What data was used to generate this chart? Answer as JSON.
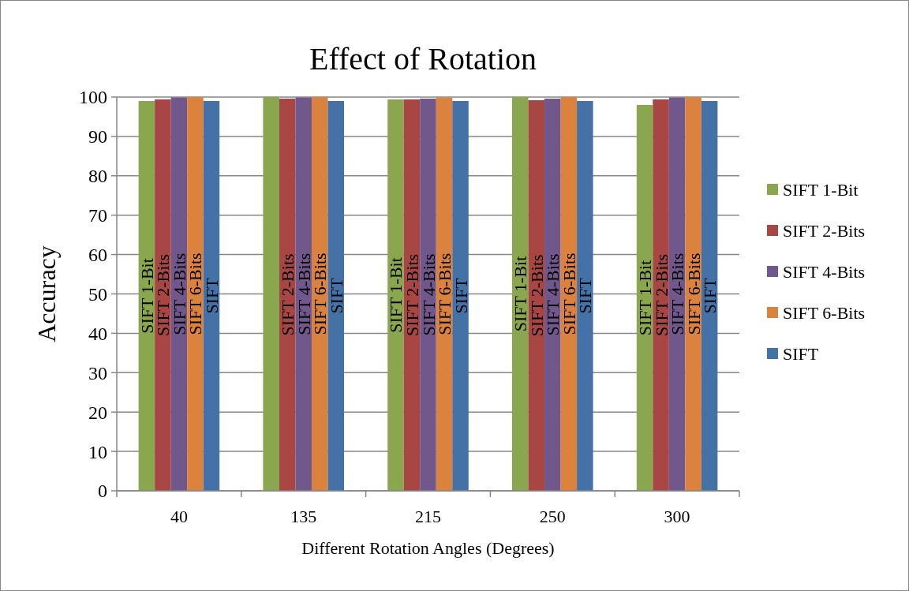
{
  "chart_data": {
    "type": "bar",
    "title": "Effect of Rotation",
    "xlabel": "Different Rotation Angles (Degrees)",
    "ylabel": "Accuracy",
    "categories": [
      "40",
      "135",
      "215",
      "250",
      "300"
    ],
    "series": [
      {
        "name": "SIFT 1-Bit",
        "color": "#8aa64e",
        "values": [
          99,
          100,
          99.4,
          100,
          98
        ],
        "value_labels": [
          "SIFT 1-Bit",
          null,
          "SIFT 1-Bit",
          "SIFT 1-Bit",
          "SIFT 1-Bit"
        ]
      },
      {
        "name": "SIFT 2-Bits",
        "color": "#a84644",
        "values": [
          99.4,
          99.6,
          99.4,
          99.2,
          99.4
        ],
        "value_labels": [
          "SIFT 2-Bits",
          "SIFT 2-Bits",
          "SIFT 2-Bits",
          "SIFT 2-Bits",
          "SIFT 2-Bits"
        ]
      },
      {
        "name": "SIFT 4-Bits",
        "color": "#71588c",
        "values": [
          99.9,
          99.9,
          99.6,
          99.6,
          99.9
        ],
        "value_labels": [
          "SIFT 4-Bits",
          "SIFT 4-Bits",
          "SIFT 4-Bits",
          "SIFT 4-Bits",
          "SIFT 4-Bits"
        ]
      },
      {
        "name": "SIFT 6-Bits",
        "color": "#db823e",
        "values": [
          100,
          100,
          99.9,
          100,
          100
        ],
        "value_labels": [
          "SIFT 6-Bits",
          "SIFT 6-Bits",
          "SIFT 6-Bits",
          "SIFT 6-Bits",
          "SIFT 6-Bits"
        ]
      },
      {
        "name": "SIFT",
        "color": "#4472a6",
        "values": [
          99,
          99,
          99,
          99,
          99
        ],
        "value_labels": [
          "SIFT",
          "SIFT",
          "SIFT",
          "SIFT",
          "SIFT"
        ]
      }
    ],
    "ylim": [
      0,
      100
    ],
    "yticks": [
      0,
      10,
      20,
      30,
      40,
      50,
      60,
      70,
      80,
      90,
      100
    ],
    "grid": "y",
    "legend": "right"
  }
}
